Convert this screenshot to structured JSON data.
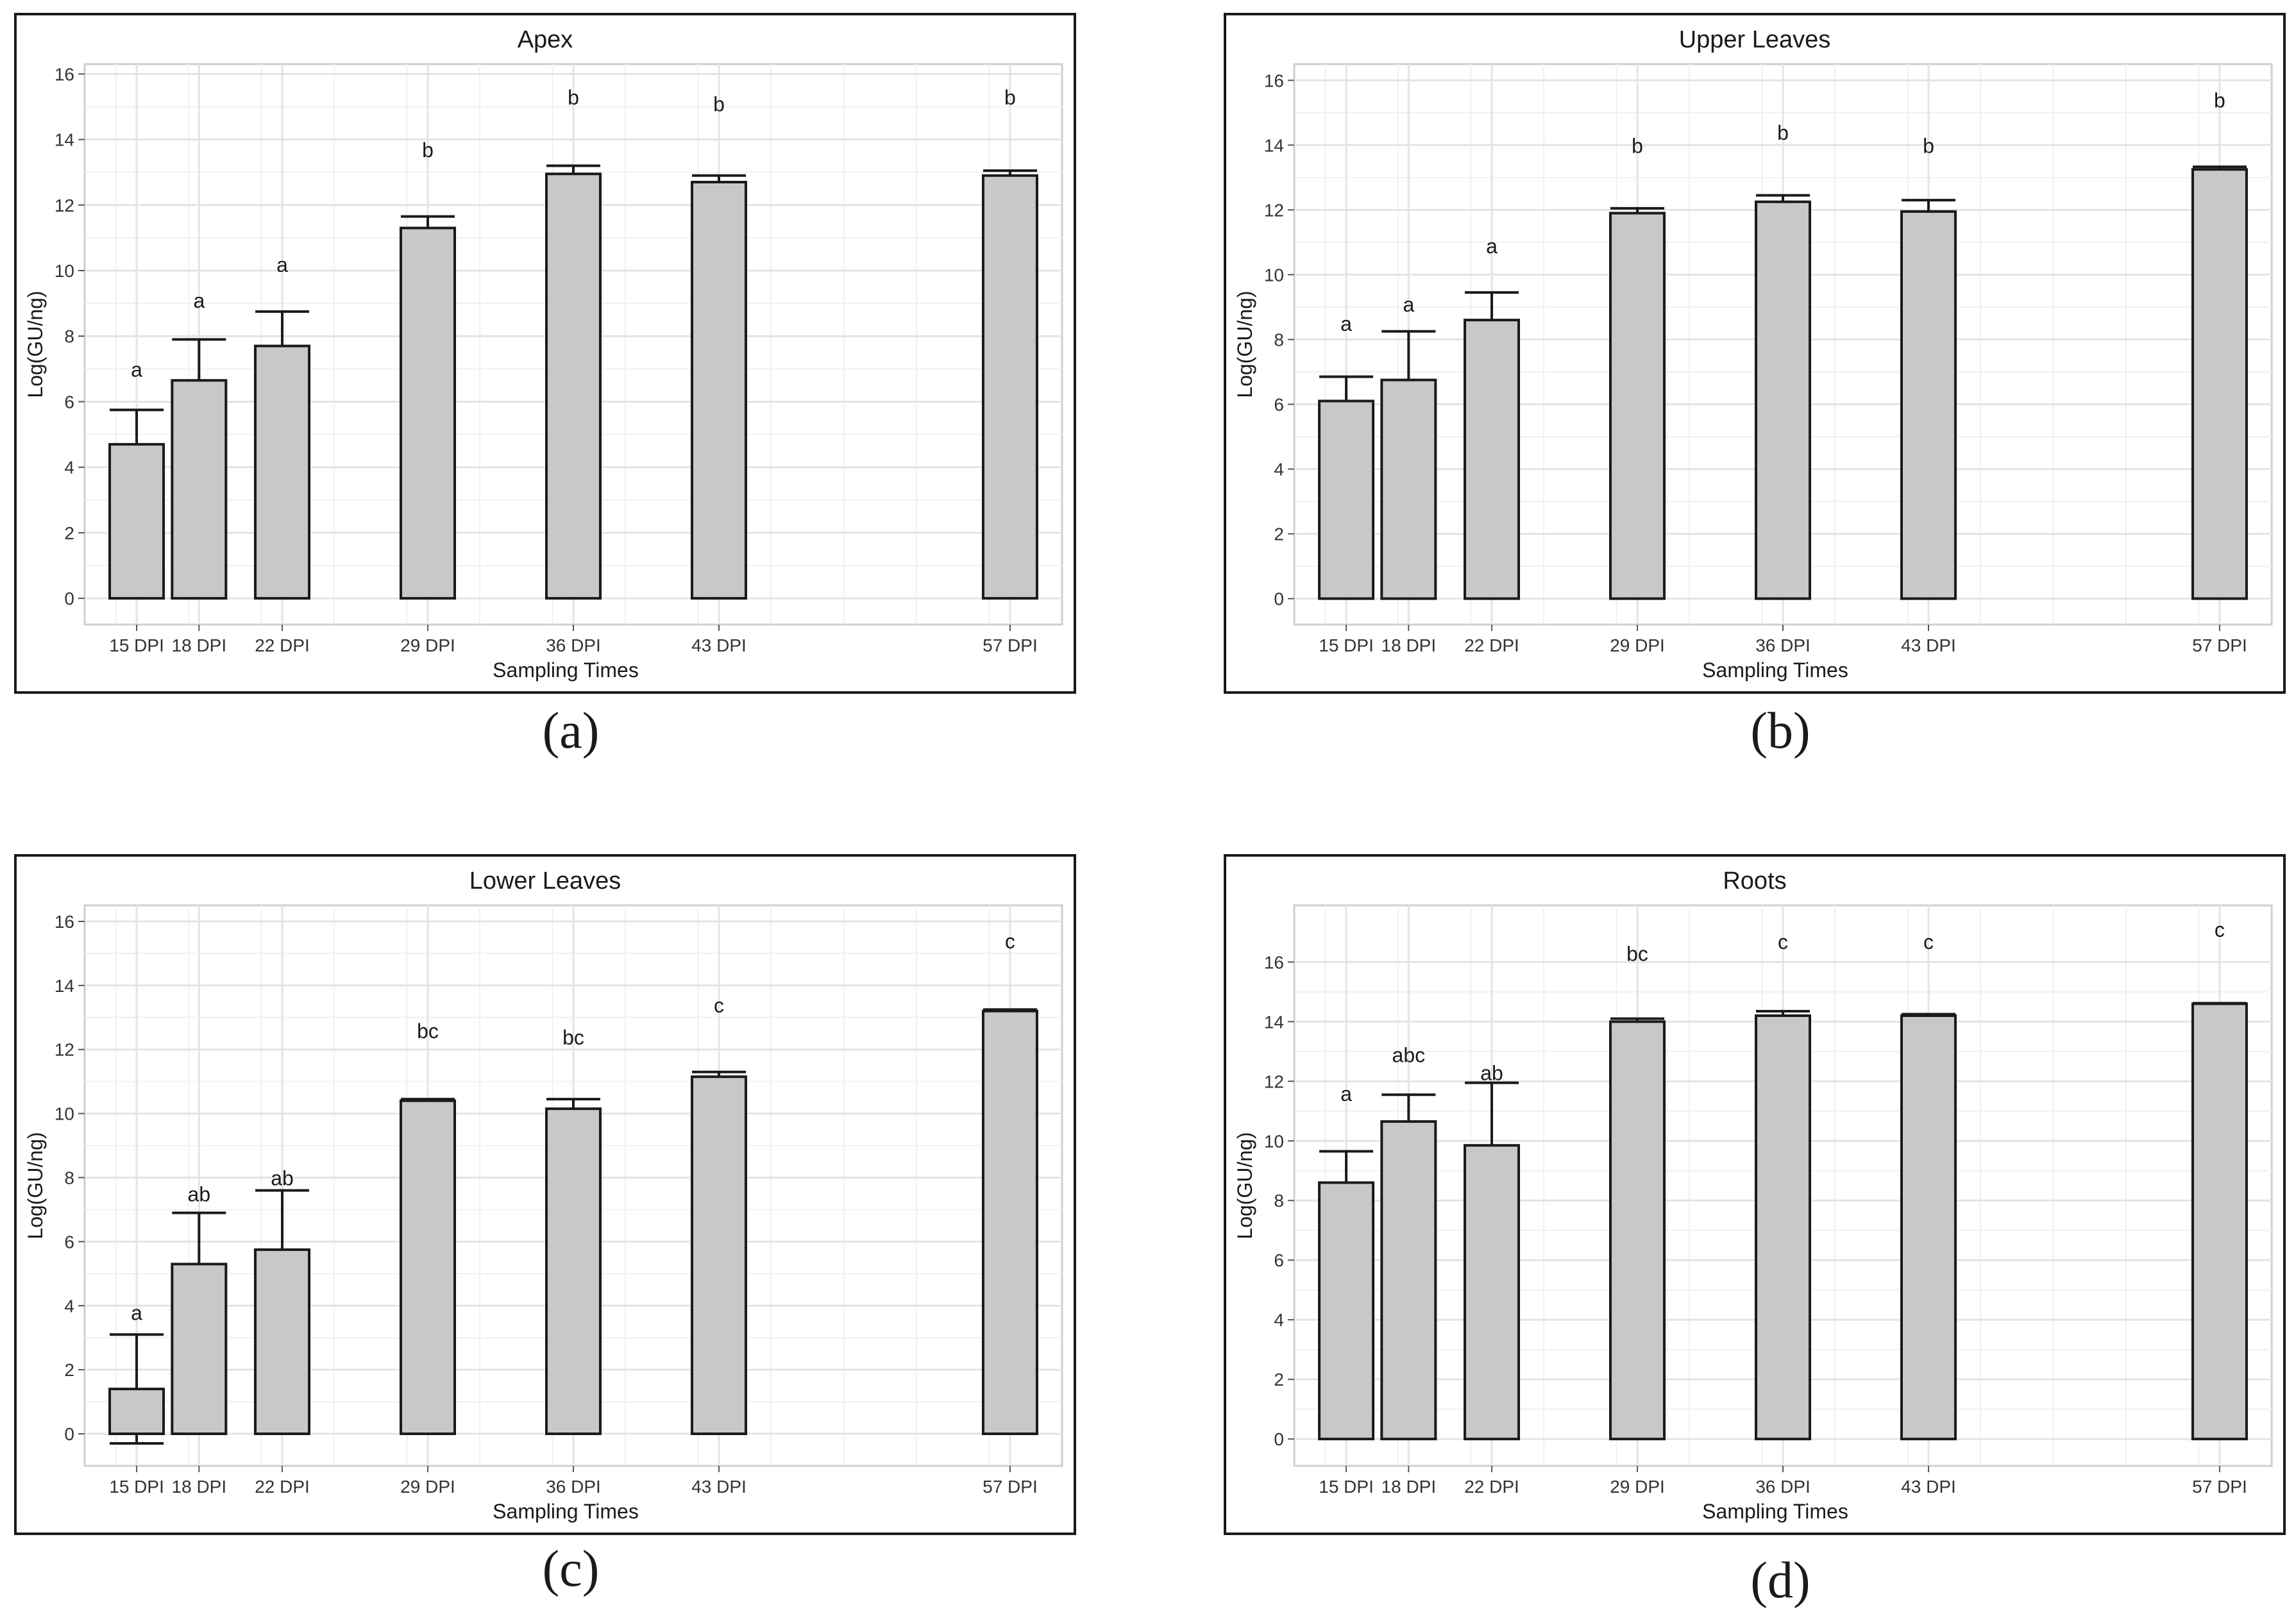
{
  "chart_data": [
    {
      "type": "bar",
      "title": "Apex",
      "xlabel": "Sampling Times",
      "ylabel": "Log(GU/ng)",
      "ylim": [
        -0.8,
        16.3
      ],
      "yticks": [
        0,
        2,
        4,
        6,
        8,
        10,
        12,
        14,
        16
      ],
      "x_day_range": [
        12.5,
        59.5
      ],
      "x_days": [
        15,
        18,
        22,
        29,
        36,
        43,
        57
      ],
      "categories": [
        "15 DPI",
        "18 DPI",
        "22 DPI",
        "29 DPI",
        "36 DPI",
        "43 DPI",
        "57 DPI"
      ],
      "values": [
        4.7,
        6.65,
        7.7,
        11.3,
        12.95,
        12.7,
        12.9
      ],
      "errors": [
        1.05,
        1.25,
        1.05,
        0.35,
        0.25,
        0.2,
        0.15
      ],
      "letters": [
        "a",
        "a",
        "a",
        "b",
        "b",
        "b",
        "b"
      ],
      "letter_y": [
        7.0,
        9.1,
        10.2,
        13.7,
        15.3,
        15.1,
        15.3
      ],
      "grid": true,
      "colors": {
        "bar_fill": "#c8c8c8",
        "bar_stroke": "#1a1a1a",
        "grid": "#e4e4e4"
      }
    },
    {
      "type": "bar",
      "title": "Upper Leaves",
      "xlabel": "Sampling Times",
      "ylabel": "Log(GU/ng)",
      "ylim": [
        -0.8,
        16.5
      ],
      "yticks": [
        0,
        2,
        4,
        6,
        8,
        10,
        12,
        14,
        16
      ],
      "x_day_range": [
        12.5,
        59.5
      ],
      "x_days": [
        15,
        18,
        22,
        29,
        36,
        43,
        57
      ],
      "categories": [
        "15 DPI",
        "18 DPI",
        "22 DPI",
        "29 DPI",
        "36 DPI",
        "43 DPI",
        "57 DPI"
      ],
      "values": [
        6.1,
        6.75,
        8.6,
        11.9,
        12.25,
        11.95,
        13.25
      ],
      "errors": [
        0.75,
        1.5,
        0.85,
        0.15,
        0.2,
        0.35,
        0.08
      ],
      "letters": [
        "a",
        "a",
        "a",
        "b",
        "b",
        "b",
        "b"
      ],
      "letter_y": [
        8.5,
        9.1,
        10.9,
        14.0,
        14.4,
        14.0,
        15.4
      ],
      "grid": true,
      "colors": {
        "bar_fill": "#c8c8c8",
        "bar_stroke": "#1a1a1a",
        "grid": "#e4e4e4"
      }
    },
    {
      "type": "bar",
      "title": "Lower Leaves",
      "xlabel": "Sampling Times",
      "ylabel": "Log(GU/ng)",
      "ylim": [
        -1.0,
        16.5
      ],
      "yticks": [
        0,
        2,
        4,
        6,
        8,
        10,
        12,
        14,
        16
      ],
      "x_day_range": [
        12.5,
        59.5
      ],
      "x_days": [
        15,
        18,
        22,
        29,
        36,
        43,
        57
      ],
      "categories": [
        "15 DPI",
        "18 DPI",
        "22 DPI",
        "29 DPI",
        "36 DPI",
        "43 DPI",
        "57 DPI"
      ],
      "values": [
        1.4,
        5.3,
        5.75,
        10.4,
        10.15,
        11.15,
        13.2
      ],
      "errors": [
        1.7,
        1.6,
        1.85,
        0.05,
        0.3,
        0.15,
        0.05
      ],
      "letters": [
        "a",
        "ab",
        "ab",
        "bc",
        "bc",
        "c",
        "c"
      ],
      "letter_y": [
        3.8,
        7.5,
        8.0,
        12.6,
        12.4,
        13.4,
        15.4
      ],
      "grid": true,
      "colors": {
        "bar_fill": "#c8c8c8",
        "bar_stroke": "#1a1a1a",
        "grid": "#e4e4e4"
      }
    },
    {
      "type": "bar",
      "title": "Roots",
      "xlabel": "Sampling Times",
      "ylabel": "Log(GU/ng)",
      "ylim": [
        -0.9,
        17.9
      ],
      "yticks": [
        0,
        2,
        4,
        6,
        8,
        10,
        12,
        14,
        16
      ],
      "x_day_range": [
        12.5,
        59.5
      ],
      "x_days": [
        15,
        18,
        22,
        29,
        36,
        43,
        57
      ],
      "categories": [
        "15 DPI",
        "18 DPI",
        "22 DPI",
        "29 DPI",
        "36 DPI",
        "43 DPI",
        "57 DPI"
      ],
      "values": [
        8.6,
        10.65,
        9.85,
        14.0,
        14.2,
        14.2,
        14.6
      ],
      "errors": [
        1.05,
        0.9,
        2.1,
        0.1,
        0.15,
        0.05,
        0.02
      ],
      "letters": [
        "a",
        "abc",
        "ab",
        "bc",
        "c",
        "c",
        "c"
      ],
      "letter_y": [
        11.6,
        12.9,
        12.3,
        16.3,
        16.7,
        16.7,
        17.1
      ],
      "grid": true,
      "colors": {
        "bar_fill": "#c8c8c8",
        "bar_stroke": "#1a1a1a",
        "grid": "#e4e4e4"
      }
    }
  ],
  "captions": [
    "(a)",
    "(b)",
    "(c)",
    "(d)"
  ]
}
